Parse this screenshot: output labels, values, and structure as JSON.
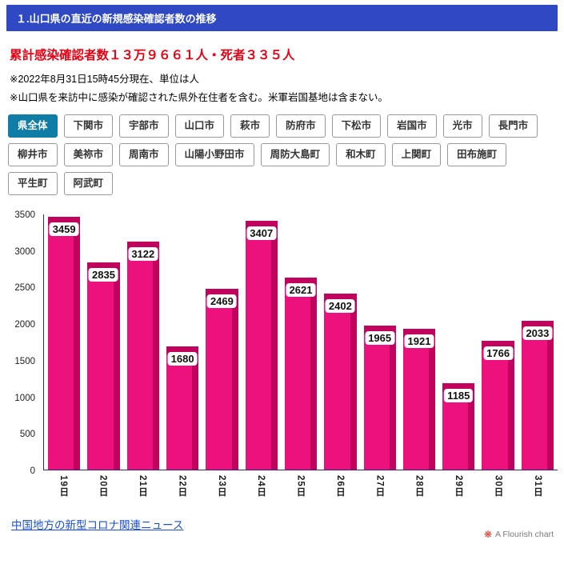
{
  "header": {
    "title": "１.山口県の直近の新規感染確認者数の推移"
  },
  "summary": {
    "headline": "累計感染確認者数１３万９６６１人・死者３３５人",
    "notes": [
      "※2022年8月31日15時45分現在、単位は人",
      "※山口県を来訪中に感染が確認された県外在住者を含む。米軍岩国基地は含まない。"
    ]
  },
  "tabs": {
    "items": [
      {
        "label": "県全体",
        "selected": true
      },
      {
        "label": "下関市",
        "selected": false
      },
      {
        "label": "宇部市",
        "selected": false
      },
      {
        "label": "山口市",
        "selected": false
      },
      {
        "label": "萩市",
        "selected": false
      },
      {
        "label": "防府市",
        "selected": false
      },
      {
        "label": "下松市",
        "selected": false
      },
      {
        "label": "岩国市",
        "selected": false
      },
      {
        "label": "光市",
        "selected": false
      },
      {
        "label": "長門市",
        "selected": false
      },
      {
        "label": "柳井市",
        "selected": false
      },
      {
        "label": "美祢市",
        "selected": false
      },
      {
        "label": "周南市",
        "selected": false
      },
      {
        "label": "山陽小野田市",
        "selected": false
      },
      {
        "label": "周防大島町",
        "selected": false
      },
      {
        "label": "和木町",
        "selected": false
      },
      {
        "label": "上関町",
        "selected": false
      },
      {
        "label": "田布施町",
        "selected": false
      },
      {
        "label": "平生町",
        "selected": false
      },
      {
        "label": "阿武町",
        "selected": false
      }
    ]
  },
  "chart_data": {
    "type": "bar",
    "title": "",
    "xlabel": "",
    "ylabel": "",
    "categories": [
      "19日",
      "20日",
      "21日",
      "22日",
      "23日",
      "24日",
      "25日",
      "26日",
      "27日",
      "28日",
      "29日",
      "30日",
      "31日"
    ],
    "values": [
      3459,
      2835,
      3122,
      1680,
      2469,
      3407,
      2621,
      2402,
      1965,
      1921,
      1185,
      1766,
      2033
    ],
    "ylim": [
      0,
      3500
    ],
    "yticks": [
      0,
      500,
      1000,
      1500,
      2000,
      2500,
      3000,
      3500
    ],
    "grid": false,
    "legend": "none",
    "x_label_orientation": "vertical",
    "value_labels": "on-bar-white-pill",
    "bar_color": "#ec117c",
    "bar_shadow_color": "#c2035e"
  },
  "theme": {
    "header_bg": "#2e49c3",
    "tab_selected_bg": "#0f7da5",
    "headline_color": "#e50013",
    "axis_color": "#2c2c6e",
    "link_color": "#1a4fd6"
  },
  "footer": {
    "news_link": "中国地方の新型コロナ関連ニュース",
    "attribution": "A Flourish chart",
    "flourish_logo_glyph": "❋"
  }
}
